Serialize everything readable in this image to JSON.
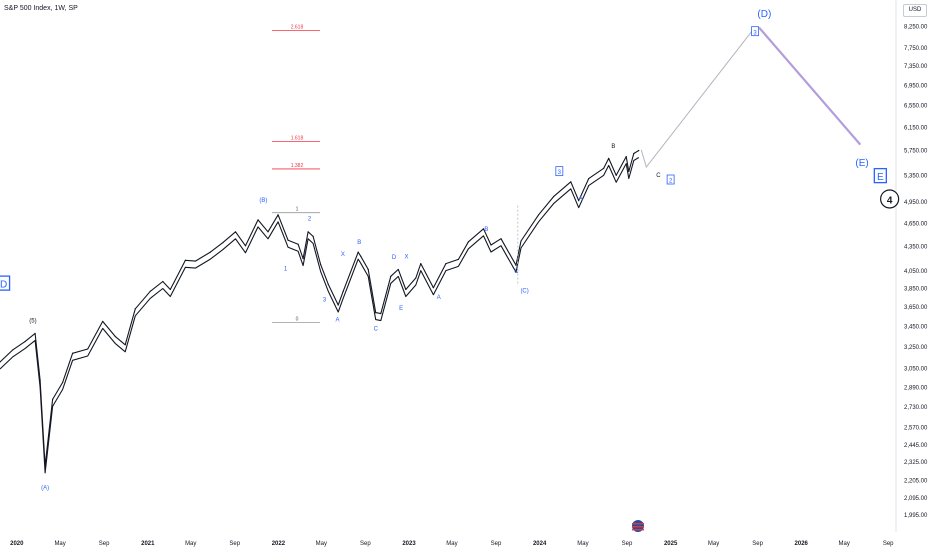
{
  "header": {
    "symbol_title": "S&P 500 Index, 1W, SP",
    "currency": "USD"
  },
  "chart_data": {
    "type": "line",
    "title": "S&P 500 Index, 1W, SP",
    "y_scale": "log",
    "ylim": [
      1920,
      8700
    ],
    "xlim": [
      "2019-11-15",
      "2026-09-20"
    ],
    "y_ticks": [
      "8,250.00",
      "7,750.00",
      "7,350.00",
      "6,950.00",
      "6,550.00",
      "6,150.00",
      "5,750.00",
      "5,350.00",
      "4,950.00",
      "4,650.00",
      "4,350.00",
      "4,050.00",
      "3,850.00",
      "3,650.00",
      "3,450.00",
      "3,250.00",
      "3,050.00",
      "2,890.00",
      "2,730.00",
      "2,570.00",
      "2,445.00",
      "2,325.00",
      "2,205.00",
      "2,095.00",
      "1,995.00"
    ],
    "x_ticks": [
      {
        "label": "2020",
        "date": "2020-01-01",
        "bold": true
      },
      {
        "label": "May",
        "date": "2020-05-01"
      },
      {
        "label": "Sep",
        "date": "2020-09-01"
      },
      {
        "label": "2021",
        "date": "2021-01-01",
        "bold": true
      },
      {
        "label": "May",
        "date": "2021-05-01"
      },
      {
        "label": "Sep",
        "date": "2021-09-01"
      },
      {
        "label": "2022",
        "date": "2022-01-01",
        "bold": true
      },
      {
        "label": "May",
        "date": "2022-05-01"
      },
      {
        "label": "Sep",
        "date": "2022-09-01"
      },
      {
        "label": "2023",
        "date": "2023-01-01",
        "bold": true
      },
      {
        "label": "May",
        "date": "2023-05-01"
      },
      {
        "label": "Sep",
        "date": "2023-09-01"
      },
      {
        "label": "2024",
        "date": "2024-01-01",
        "bold": true
      },
      {
        "label": "May",
        "date": "2024-05-01"
      },
      {
        "label": "Sep",
        "date": "2024-09-01"
      },
      {
        "label": "2025",
        "date": "2025-01-01",
        "bold": true
      },
      {
        "label": "May",
        "date": "2025-05-01"
      },
      {
        "label": "Sep",
        "date": "2025-09-01"
      },
      {
        "label": "2026",
        "date": "2026-01-01",
        "bold": true
      },
      {
        "label": "May",
        "date": "2026-05-01"
      },
      {
        "label": "Sep",
        "date": "2026-09-01"
      }
    ],
    "series": [
      {
        "values": [
          [
            "2019-11-15",
            3110
          ],
          [
            "2019-12-20",
            3220
          ],
          [
            "2020-01-24",
            3300
          ],
          [
            "2020-02-21",
            3380
          ],
          [
            "2020-03-06",
            2950
          ],
          [
            "2020-03-20",
            2300
          ],
          [
            "2020-04-10",
            2790
          ],
          [
            "2020-05-08",
            2930
          ],
          [
            "2020-06-05",
            3190
          ],
          [
            "2020-07-17",
            3230
          ],
          [
            "2020-08-28",
            3500
          ],
          [
            "2020-10-02",
            3350
          ],
          [
            "2020-10-30",
            3270
          ],
          [
            "2020-11-27",
            3630
          ],
          [
            "2021-01-08",
            3820
          ],
          [
            "2021-02-12",
            3930
          ],
          [
            "2021-03-05",
            3840
          ],
          [
            "2021-04-16",
            4180
          ],
          [
            "2021-05-14",
            4170
          ],
          [
            "2021-06-25",
            4280
          ],
          [
            "2021-07-30",
            4400
          ],
          [
            "2021-09-03",
            4540
          ],
          [
            "2021-10-01",
            4360
          ],
          [
            "2021-11-05",
            4700
          ],
          [
            "2021-12-03",
            4540
          ],
          [
            "2021-12-31",
            4770
          ],
          [
            "2022-01-28",
            4430
          ],
          [
            "2022-02-25",
            4380
          ],
          [
            "2022-03-11",
            4200
          ],
          [
            "2022-03-25",
            4540
          ],
          [
            "2022-04-08",
            4480
          ],
          [
            "2022-04-29",
            4130
          ],
          [
            "2022-05-20",
            3900
          ],
          [
            "2022-06-17",
            3670
          ],
          [
            "2022-07-01",
            3820
          ],
          [
            "2022-08-12",
            4280
          ],
          [
            "2022-08-19",
            4230
          ],
          [
            "2022-09-09",
            4070
          ],
          [
            "2022-09-30",
            3590
          ],
          [
            "2022-10-14",
            3580
          ],
          [
            "2022-11-11",
            3990
          ],
          [
            "2022-12-02",
            4070
          ],
          [
            "2022-12-23",
            3840
          ],
          [
            "2023-01-20",
            3970
          ],
          [
            "2023-02-03",
            4140
          ],
          [
            "2023-03-10",
            3860
          ],
          [
            "2023-04-14",
            4140
          ],
          [
            "2023-05-19",
            4190
          ],
          [
            "2023-06-16",
            4410
          ],
          [
            "2023-07-28",
            4580
          ],
          [
            "2023-08-18",
            4370
          ],
          [
            "2023-09-15",
            4450
          ],
          [
            "2023-10-27",
            4120
          ],
          [
            "2023-11-10",
            4420
          ],
          [
            "2023-12-29",
            4770
          ],
          [
            "2024-02-09",
            5030
          ],
          [
            "2024-03-28",
            5250
          ],
          [
            "2024-04-19",
            4970
          ],
          [
            "2024-05-17",
            5300
          ],
          [
            "2024-06-28",
            5460
          ],
          [
            "2024-07-12",
            5620
          ],
          [
            "2024-08-02",
            5350
          ],
          [
            "2024-08-30",
            5650
          ],
          [
            "2024-09-06",
            5410
          ],
          [
            "2024-09-20",
            5700
          ],
          [
            "2024-10-04",
            5750
          ]
        ]
      }
    ],
    "projection": [
      {
        "segment": "to (D)",
        "points": [
          [
            "2024-10-11",
            5760
          ],
          [
            "2024-10-25",
            5480
          ],
          [
            "2025-08-22",
            8200
          ]
        ]
      },
      {
        "segment": "to (E)",
        "points": [
          [
            "2025-09-05",
            8220
          ],
          [
            "2026-06-15",
            5850
          ]
        ]
      }
    ],
    "fib_levels": [
      {
        "label": "2.618",
        "value": 8150
      },
      {
        "label": "1.618",
        "value": 5900
      },
      {
        "label": "1.382",
        "value": 5450
      },
      {
        "label": "1",
        "value": 4800
      },
      {
        "label": "0",
        "value": 3490
      }
    ],
    "wave_labels": [
      {
        "text": "D",
        "date": "2019-11-25",
        "y": 3900,
        "boxed": true,
        "color": "blue",
        "big": true
      },
      {
        "text": "(5)",
        "date": "2020-02-15",
        "y": 3510,
        "color": "black"
      },
      {
        "text": "(A)",
        "date": "2020-03-20",
        "y": 2160,
        "color": "blue"
      },
      {
        "text": "(B)",
        "date": "2021-11-20",
        "y": 4980,
        "color": "blue"
      },
      {
        "text": "1",
        "date": "2022-01-21",
        "y": 4080,
        "color": "blue"
      },
      {
        "text": "2",
        "date": "2022-03-29",
        "y": 4720,
        "color": "blue"
      },
      {
        "text": "3",
        "date": "2022-05-10",
        "y": 3730,
        "color": "blue"
      },
      {
        "text": "A",
        "date": "2022-06-15",
        "y": 3520,
        "color": "blue"
      },
      {
        "text": "X",
        "date": "2022-06-30",
        "y": 4260,
        "color": "blue"
      },
      {
        "text": "B",
        "date": "2022-08-15",
        "y": 4410,
        "color": "blue"
      },
      {
        "text": "C",
        "date": "2022-09-30",
        "y": 3430,
        "color": "blue"
      },
      {
        "text": "D",
        "date": "2022-11-20",
        "y": 4220,
        "color": "blue"
      },
      {
        "text": "X",
        "date": "2022-12-25",
        "y": 4230,
        "color": "blue"
      },
      {
        "text": "E",
        "date": "2022-12-10",
        "y": 3640,
        "color": "blue"
      },
      {
        "text": "A",
        "date": "2023-03-25",
        "y": 3760,
        "color": "blue"
      },
      {
        "text": "B",
        "date": "2023-08-05",
        "y": 4580,
        "color": "blue"
      },
      {
        "text": "C",
        "date": "2023-10-28",
        "y": 4050,
        "color": "blue"
      },
      {
        "text": "(C)",
        "date": "2023-11-20",
        "y": 3830,
        "color": "blue"
      },
      {
        "text": "3",
        "date": "2024-02-25",
        "y": 5400,
        "boxed": true,
        "color": "blue"
      },
      {
        "text": "A",
        "date": "2024-04-25",
        "y": 5000,
        "color": "blue"
      },
      {
        "text": "B",
        "date": "2024-07-25",
        "y": 5830,
        "color": "black"
      },
      {
        "text": "C",
        "date": "2024-11-28",
        "y": 5360,
        "color": "black"
      },
      {
        "text": "2",
        "date": "2025-01-01",
        "y": 5270,
        "boxed": true,
        "color": "blue"
      },
      {
        "text": "3",
        "date": "2025-08-25",
        "y": 8110,
        "boxed": true,
        "color": "blue"
      },
      {
        "text": "(D)",
        "date": "2025-09-20",
        "y": 8560,
        "color": "blue",
        "big": true
      },
      {
        "text": "(E)",
        "date": "2026-06-20",
        "y": 5550,
        "color": "blue",
        "big": true
      },
      {
        "text": "E",
        "date": "2026-08-10",
        "y": 5330,
        "boxed": true,
        "color": "blue",
        "big": true
      },
      {
        "text": "4",
        "date": "2026-09-05",
        "y": 4980,
        "circled": true,
        "color": "black",
        "big": true
      }
    ],
    "colors": {
      "price": "#131722",
      "projection_grey": "#b2b5be",
      "projection_purple": "#b39ddb",
      "fib": "#f23645",
      "wave_blue": "#2962ff"
    }
  }
}
